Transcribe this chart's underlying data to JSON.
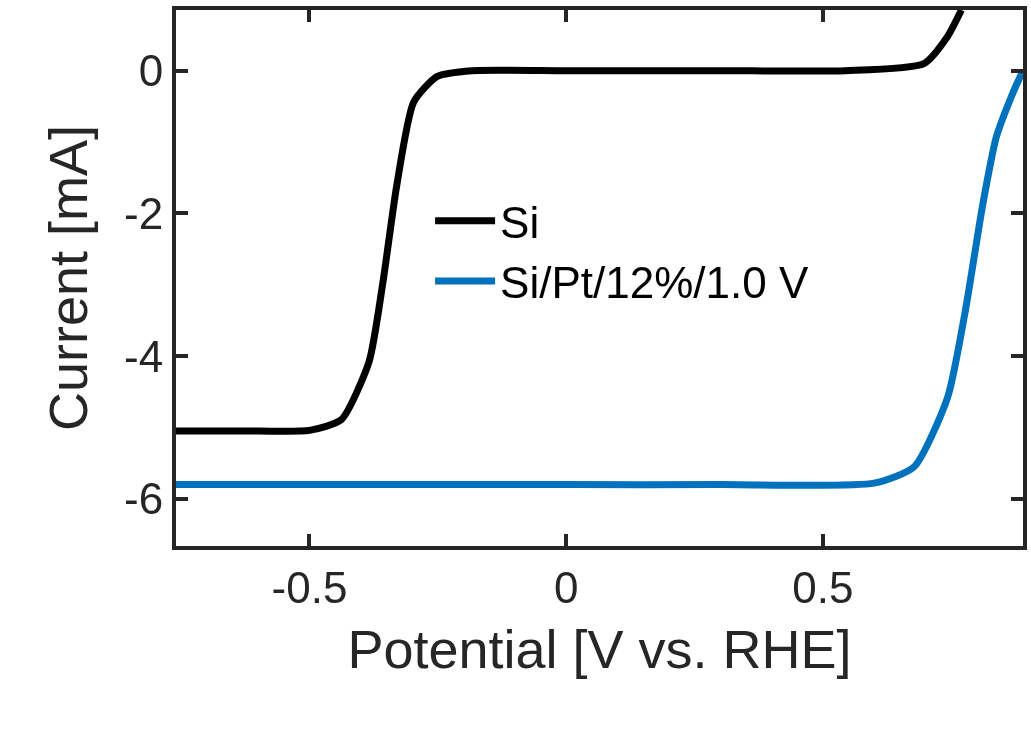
{
  "chart_data": {
    "type": "line",
    "xlabel": "Potential [V vs. RHE]",
    "ylabel": "Current [mA]",
    "xlim": [
      -0.76,
      0.89
    ],
    "ylim": [
      -6.66,
      0.85
    ],
    "xticks": [
      -0.5,
      0,
      0.5
    ],
    "yticks": [
      0,
      -2,
      -4,
      -6
    ],
    "legend": "center",
    "marker": "none",
    "line_style": "solid",
    "series": [
      {
        "name": "Si",
        "color": "#000000",
        "x": [
          -0.76,
          -0.6,
          -0.5,
          -0.438,
          -0.384,
          -0.357,
          -0.33,
          -0.297,
          -0.251,
          -0.183,
          0,
          0.3,
          0.544,
          0.697,
          0.743,
          0.77
        ],
        "values": [
          -5.05,
          -5.05,
          -5.04,
          -4.89,
          -4.08,
          -2.97,
          -1.61,
          -0.44,
          -0.08,
          0,
          0,
          0,
          0,
          0.1,
          0.48,
          0.85
        ]
      },
      {
        "name": "Si/Pt/12%/1.0 V",
        "color": "#0072bd",
        "x": [
          -0.76,
          -0.3,
          0,
          0.3,
          0.6,
          0.678,
          0.743,
          0.778,
          0.811,
          0.838,
          0.871,
          0.89
        ],
        "values": [
          -5.8,
          -5.8,
          -5.8,
          -5.8,
          -5.78,
          -5.55,
          -4.58,
          -3.35,
          -1.9,
          -0.93,
          -0.3,
          0
        ]
      }
    ]
  }
}
